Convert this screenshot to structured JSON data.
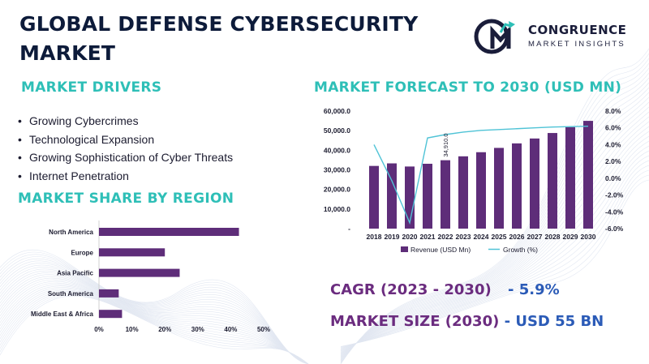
{
  "title": "GLOBAL DEFENSE CYBERSECURITY MARKET",
  "logo": {
    "name": "CONGRUENCE",
    "tagline": "MARKET INSIGHTS"
  },
  "drivers": {
    "heading": "MARKET DRIVERS",
    "items": [
      "Growing Cybercrimes",
      "Technological Expansion",
      "Growing Sophistication of Cyber Threats",
      "Internet Penetration"
    ]
  },
  "share": {
    "heading": "MARKET SHARE BY REGION"
  },
  "forecast": {
    "heading": "MARKET FORECAST TO 2030 (USD MN)"
  },
  "cagr": {
    "label": "CAGR (2023 - 2030)",
    "value": "- 5.9%"
  },
  "size": {
    "label": "MARKET SIZE (2030)",
    "value": "- USD 55 BN"
  },
  "colors": {
    "teal": "#2ebfb7",
    "purple": "#5e2d79",
    "line": "#4fc3d6",
    "navy": "#0d1b3a"
  },
  "chart_data": [
    {
      "type": "bar",
      "orientation": "horizontal",
      "title": "MARKET SHARE BY REGION",
      "categories": [
        "North America",
        "Europe",
        "Asia Pacific",
        "South America",
        "Middle East & Africa"
      ],
      "values": [
        42.5,
        20,
        24.5,
        6,
        7
      ],
      "xlim": [
        0,
        50
      ],
      "ticks": [
        "0%",
        "10%",
        "20%",
        "30%",
        "40%",
        "50%"
      ],
      "grid": false,
      "color": "#5e2d79"
    },
    {
      "type": "bar",
      "title": "MARKET FORECAST TO 2030 (USD MN)",
      "categories": [
        "2018",
        "2019",
        "2020",
        "2021",
        "2022",
        "2023",
        "2024",
        "2025",
        "2026",
        "2027",
        "2028",
        "2029",
        "2030"
      ],
      "series": [
        {
          "name": "Revenue (USD Mn)",
          "type": "bar",
          "axis": "left",
          "color": "#5e2d79",
          "values": [
            32000,
            33300,
            31700,
            33100,
            34910,
            36900,
            39000,
            41200,
            43500,
            46000,
            48800,
            51800,
            55000
          ]
        },
        {
          "name": "Growth (%)",
          "type": "line",
          "axis": "right",
          "color": "#4fc3d6",
          "values": [
            4.0,
            -0.3,
            -5.3,
            4.8,
            5.2,
            5.5,
            5.7,
            5.8,
            5.9,
            6.0,
            6.1,
            6.15,
            6.2
          ]
        }
      ],
      "y_left": {
        "ylim": [
          0,
          60000
        ],
        "ticks": [
          "-",
          "10,000.0",
          "20,000.0",
          "30,000.0",
          "40,000.0",
          "50,000.0",
          "60,000.0"
        ]
      },
      "y_right": {
        "ylim": [
          -6,
          8
        ],
        "ticks": [
          "-6.0%",
          "-4.0%",
          "-2.0%",
          "0.0%",
          "2.0%",
          "4.0%",
          "6.0%",
          "8.0%"
        ]
      },
      "annotation": {
        "category": "2022",
        "text": "34,910.0"
      },
      "legend": "bottom"
    }
  ]
}
